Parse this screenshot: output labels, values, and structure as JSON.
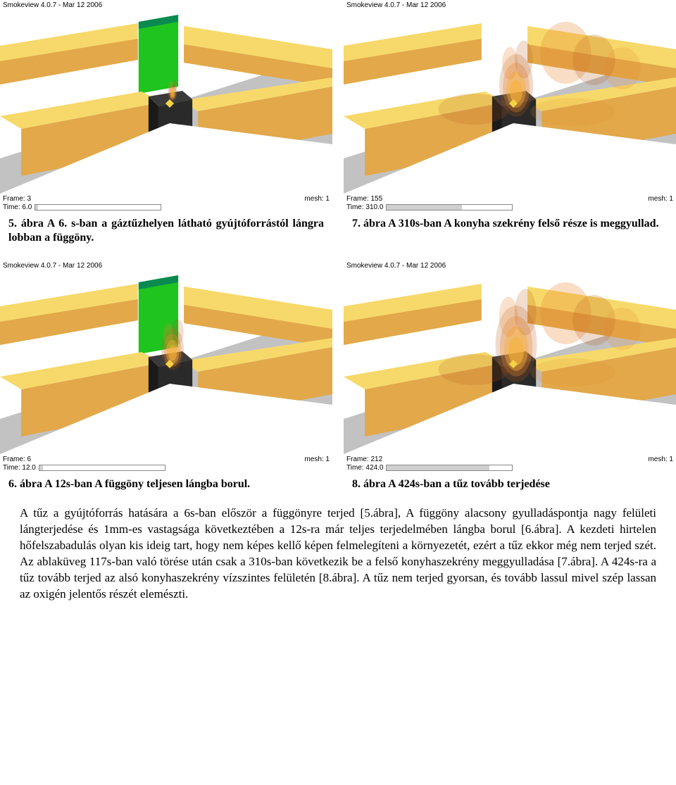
{
  "software_label": "Smokeview 4.0.7 - Mar 12 2006",
  "mesh_label": "mesh: 1",
  "colors": {
    "viewport_bg": "#c2c2c2",
    "floor": "#ffffff",
    "cabinet_light": "#f6d96a",
    "cabinet_dark": "#e2a84a",
    "stove": "#2a2a2a",
    "curtain": "#1fc41f",
    "flame_inner": "#f7b23a",
    "flame_mid": "#e9862e",
    "flame_outer": "#b85a1a",
    "diamond": "#f6d342",
    "progress_border": "#888888",
    "progress_fill": "#d0d0d0"
  },
  "panels": [
    {
      "frame": "3",
      "time_label": "6.0",
      "progress_pct": 2,
      "show_curtain": true,
      "flame_size": 0.25,
      "extra_flame": false,
      "caption": "5. ábra A 6. s-ban a gáztűzhelyen látható gyújtóforrástól lángra lobban a függöny."
    },
    {
      "frame": "155",
      "time_label": "310.0",
      "progress_pct": 60,
      "show_curtain": false,
      "flame_size": 0.9,
      "extra_flame": true,
      "caption": "7. ábra A 310s-ban A konyha szekrény felső része is meggyullad."
    },
    {
      "frame": "6",
      "time_label": "12.0",
      "progress_pct": 3,
      "show_curtain": true,
      "flame_size": 0.6,
      "extra_flame": false,
      "caption": "6. ábra A 12s-ban A függöny teljesen lángba borul."
    },
    {
      "frame": "212",
      "time_label": "424.0",
      "progress_pct": 82,
      "show_curtain": false,
      "flame_size": 1.1,
      "extra_flame": true,
      "caption": "8. ábra A 424s-ban a tűz tovább terjedése"
    }
  ],
  "paragraph": "A tűz a gyújtóforrás hatására a 6s-ban először a függönyre terjed [5.ábra], A függöny alacsony gyulladáspontja nagy felületi lángterjedése és 1mm-es vastagsága következtében a 12s-ra már teljes terjedelmében lángba borul [6.ábra]. A kezdeti hirtelen hőfelszabadulás olyan kis ideig tart, hogy nem képes kellő képen felmelegíteni a környezetét, ezért a tűz ekkor még nem terjed szét. Az ablaküveg 117s-ban való törése után csak a 310s-ban következik be a felső konyhaszekrény meggyulladása [7.ábra]. A 424s-ra a tűz tovább terjed az alsó konyhaszekrény vízszintes felületén [8.ábra]. A tűz nem terjed gyorsan, és tovább lassul mivel szép lassan az oxigén jelentős részét elemészti."
}
